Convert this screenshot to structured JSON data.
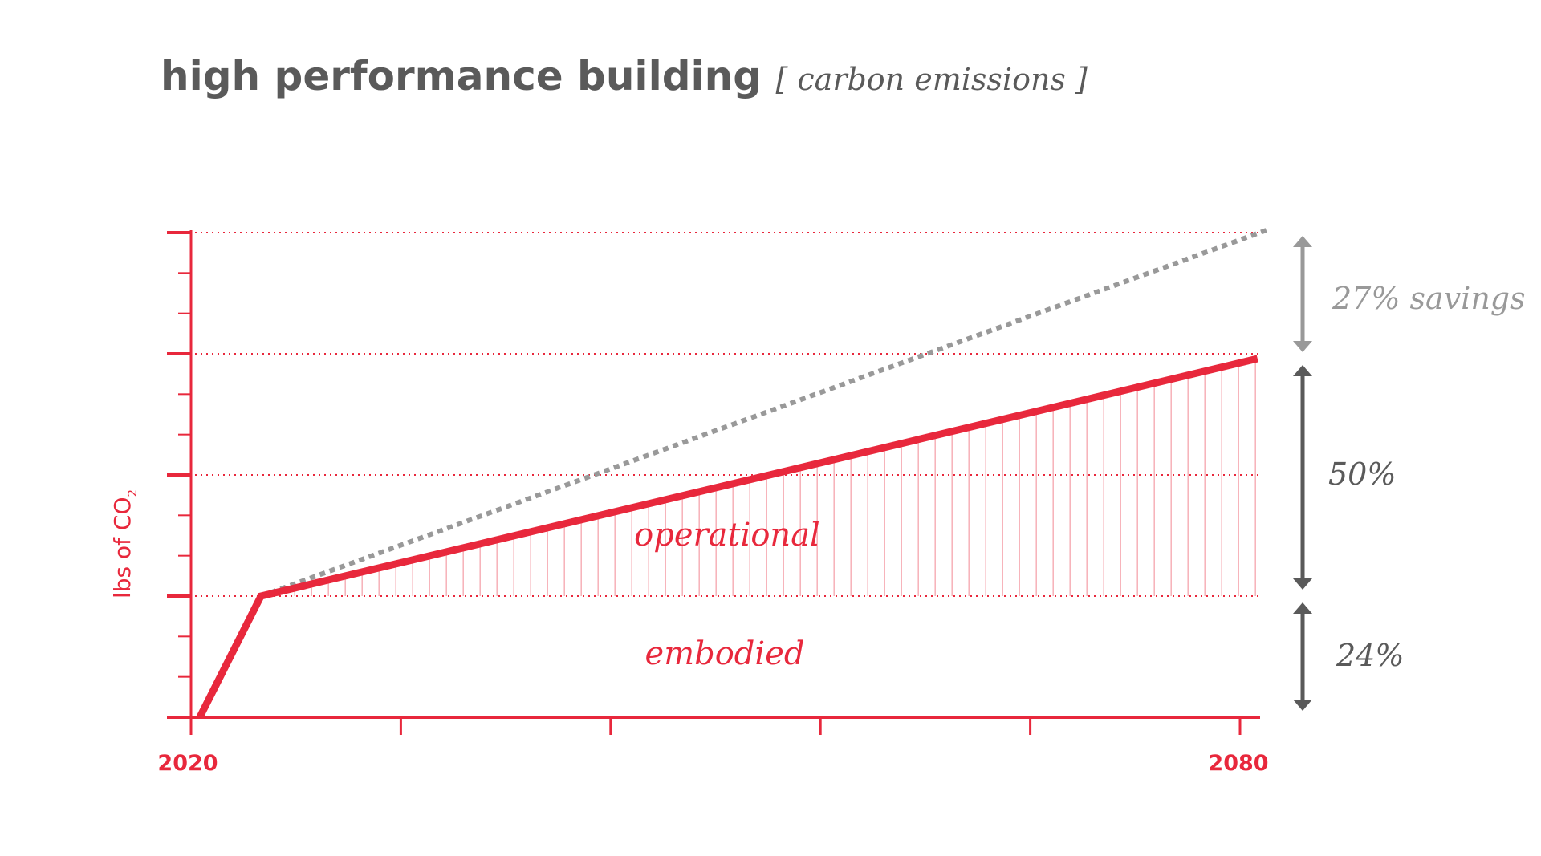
{
  "chart_data": {
    "type": "line",
    "title": "high performance building",
    "subtitle_open": "[",
    "subtitle": "carbon emissions",
    "subtitle_close": "]",
    "ylabel": "lbs of CO",
    "ylabel_sub": "2",
    "xlabel": "",
    "xlim": [
      2020,
      2080
    ],
    "ylim": [
      0,
      4
    ],
    "x_ticks": [
      2020,
      2032,
      2044,
      2056,
      2068,
      2080
    ],
    "x_tick_labels": {
      "first": "2020",
      "last": "2080"
    },
    "y_major_ticks": [
      0,
      1,
      2,
      3,
      4
    ],
    "y_minor_per_major": 2,
    "gridlines": [
      1,
      2,
      3,
      4
    ],
    "grid": "dotted horizontal at major ticks",
    "series": [
      {
        "key": "high-performance",
        "style": "solid",
        "color": "#e8283c",
        "points": [
          [
            2020.5,
            0
          ],
          [
            2024,
            1
          ],
          [
            2081,
            2.96
          ]
        ]
      },
      {
        "key": "baseline",
        "style": "dashed",
        "color": "#999999",
        "points": [
          [
            2024,
            1
          ],
          [
            2081.7,
            4.03
          ]
        ]
      }
    ],
    "regions": [
      {
        "label": "operational",
        "color": "#e8283c"
      },
      {
        "label": "embodied",
        "color": "#e8283c"
      }
    ],
    "annotations": [
      {
        "label": "27% savings",
        "from": 4,
        "to": 2.96,
        "color": "#999999"
      },
      {
        "label": "50%",
        "from": 2.96,
        "to": 1,
        "color": "#5a5a5a"
      },
      {
        "label": "24%",
        "from": 1,
        "to": 0,
        "color": "#5a5a5a"
      }
    ],
    "colors": {
      "axis": "#e8283c",
      "text": "#5a5a5a"
    }
  }
}
